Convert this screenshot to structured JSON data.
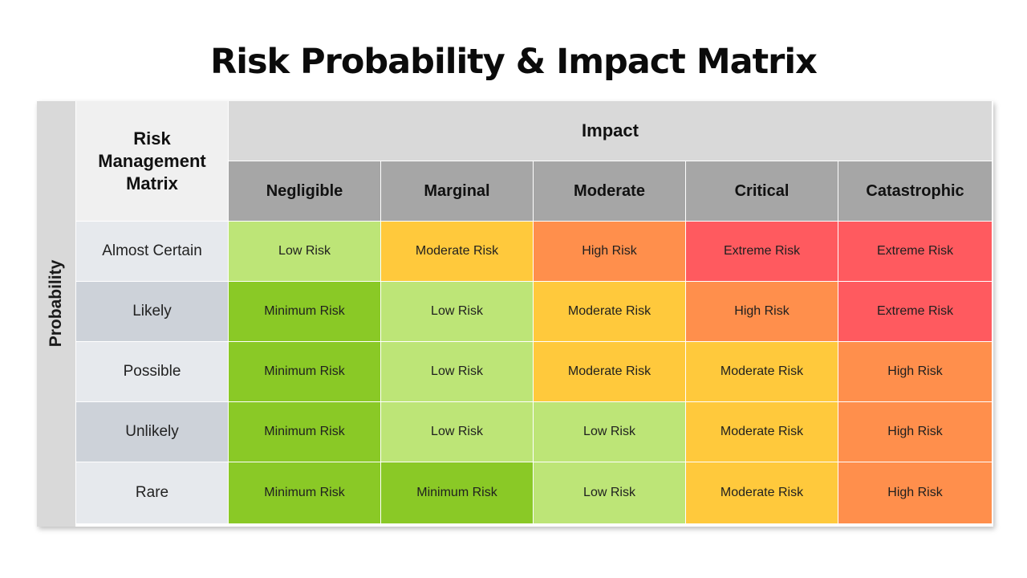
{
  "title": "Risk Probability & Impact Matrix",
  "probability_label": "Probability",
  "corner_label": "Risk Management Matrix",
  "impact_label": "Impact",
  "impact_levels": [
    "Negligible",
    "Marginal",
    "Moderate",
    "Critical",
    "Catastrophic"
  ],
  "probability_levels": [
    "Almost Certain",
    "Likely",
    "Possible",
    "Unlikely",
    "Rare"
  ],
  "risk_labels": {
    "minimum": "Minimum Risk",
    "low": "Low Risk",
    "moderate": "Moderate Risk",
    "high": "High Risk",
    "extreme": "Extreme Risk"
  },
  "risk_colors": {
    "minimum": "#8ac926",
    "low": "#bde577",
    "moderate": "#ffc93c",
    "high": "#ff8f4c",
    "extreme": "#ff5a5f"
  },
  "matrix": [
    [
      "Low Risk",
      "Moderate Risk",
      "High Risk",
      "Extreme Risk",
      "Extreme Risk"
    ],
    [
      "Minimum Risk",
      "Low Risk",
      "Moderate Risk",
      "High Risk",
      "Extreme Risk"
    ],
    [
      "Minimum Risk",
      "Low Risk",
      "Moderate Risk",
      "Moderate Risk",
      "High Risk"
    ],
    [
      "Minimum Risk",
      "Low Risk",
      "Low Risk",
      "Moderate Risk",
      "High Risk"
    ],
    [
      "Minimum Risk",
      "Minimum Risk",
      "Low Risk",
      "Moderate Risk",
      "High Risk"
    ]
  ]
}
